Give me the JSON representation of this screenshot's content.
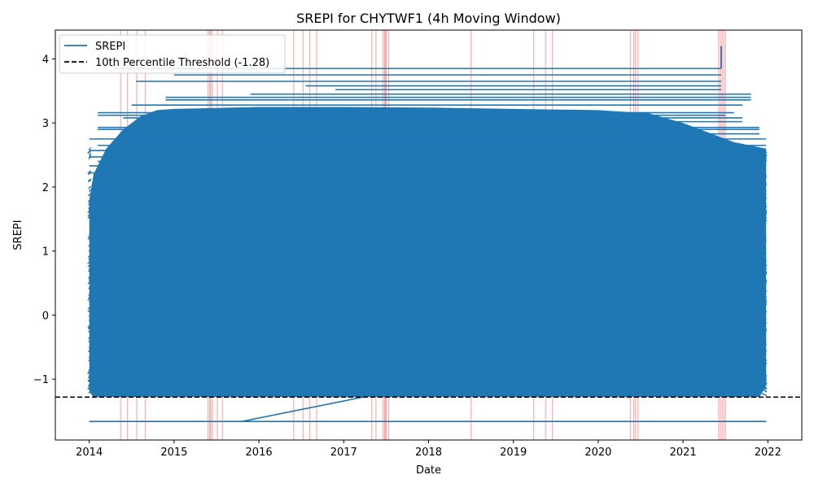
{
  "chart_data": {
    "type": "line",
    "title": "SREPI for CHYTWF1 (4h Moving Window)",
    "xlabel": "Date",
    "ylabel": "SREPI",
    "xlim": [
      2013.6,
      2022.4
    ],
    "ylim": [
      -1.95,
      4.45
    ],
    "x_ticks": [
      2014,
      2015,
      2016,
      2017,
      2018,
      2019,
      2020,
      2021,
      2022
    ],
    "x_tick_labels": [
      "2014",
      "2015",
      "2016",
      "2017",
      "2018",
      "2019",
      "2020",
      "2021",
      "2022"
    ],
    "y_ticks": [
      -1,
      0,
      1,
      2,
      3,
      4
    ],
    "y_tick_labels": [
      "−1",
      "0",
      "1",
      "2",
      "3",
      "4"
    ],
    "grid": false,
    "legend_position": "top-left",
    "series": [
      {
        "name": "SREPI",
        "color": "#1f77b4",
        "band": {
          "x_start": 2014.0,
          "x_end": 2021.98,
          "y_min": -1.28,
          "y_upper_envelope": [
            [
              2014.0,
              1.8
            ],
            [
              2014.05,
              2.2
            ],
            [
              2014.2,
              2.6
            ],
            [
              2014.4,
              2.9
            ],
            [
              2014.6,
              3.1
            ],
            [
              2014.8,
              3.2
            ],
            [
              2015.0,
              3.22
            ],
            [
              2016.0,
              3.25
            ],
            [
              2017.0,
              3.25
            ],
            [
              2018.0,
              3.24
            ],
            [
              2019.0,
              3.22
            ],
            [
              2020.0,
              3.2
            ],
            [
              2020.6,
              3.15
            ],
            [
              2021.0,
              3.0
            ],
            [
              2021.3,
              2.85
            ],
            [
              2021.6,
              2.7
            ],
            [
              2021.98,
              2.6
            ]
          ],
          "y_lower_envelope": [
            [
              2014.0,
              -1.2
            ],
            [
              2014.05,
              -1.28
            ],
            [
              2021.9,
              -1.28
            ],
            [
              2021.98,
              -1.1
            ]
          ]
        },
        "horizontal_segments": [
          {
            "x0": 2014.0,
            "x1": 2021.98,
            "y": -1.66
          },
          {
            "x0": 2014.3,
            "x1": 2021.45,
            "y": 3.85
          },
          {
            "x0": 2014.55,
            "x1": 2021.45,
            "y": 3.65
          },
          {
            "x0": 2015.0,
            "x1": 2021.45,
            "y": 3.75
          },
          {
            "x0": 2016.55,
            "x1": 2021.45,
            "y": 3.58
          },
          {
            "x0": 2016.9,
            "x1": 2021.45,
            "y": 3.52
          },
          {
            "x0": 2015.9,
            "x1": 2021.8,
            "y": 3.45
          },
          {
            "x0": 2014.9,
            "x1": 2021.8,
            "y": 3.4
          },
          {
            "x0": 2014.9,
            "x1": 2021.8,
            "y": 3.36
          },
          {
            "x0": 2014.5,
            "x1": 2021.7,
            "y": 3.28
          },
          {
            "x0": 2014.1,
            "x1": 2021.6,
            "y": 3.16
          },
          {
            "x0": 2014.1,
            "x1": 2021.5,
            "y": 3.12
          },
          {
            "x0": 2014.4,
            "x1": 2021.7,
            "y": 3.08
          },
          {
            "x0": 2020.2,
            "x1": 2021.7,
            "y": 3.02
          },
          {
            "x0": 2014.1,
            "x1": 2021.9,
            "y": 2.93
          },
          {
            "x0": 2014.1,
            "x1": 2021.9,
            "y": 2.9
          },
          {
            "x0": 2020.2,
            "x1": 2021.9,
            "y": 2.83
          },
          {
            "x0": 2014.0,
            "x1": 2021.98,
            "y": 2.75
          },
          {
            "x0": 2014.1,
            "x1": 2021.98,
            "y": 2.65
          },
          {
            "x0": 2014.0,
            "x1": 2021.98,
            "y": 2.57
          },
          {
            "x0": 2014.0,
            "x1": 2021.98,
            "y": 2.47
          },
          {
            "x0": 2014.1,
            "x1": 2021.98,
            "y": 2.4
          },
          {
            "x0": 2014.0,
            "x1": 2021.98,
            "y": 2.33
          },
          {
            "x0": 2014.0,
            "x1": 2021.98,
            "y": 2.22
          },
          {
            "x0": 2021.0,
            "x1": 2021.98,
            "y": 2.08
          },
          {
            "x0": 2021.0,
            "x1": 2021.98,
            "y": 2.01
          }
        ],
        "connectors": [
          {
            "x0": 2015.8,
            "y0": -1.66,
            "x1": 2017.3,
            "y1": -1.26
          }
        ],
        "spike": {
          "x": 2021.45,
          "y0": 3.85,
          "y1": 4.2
        }
      }
    ],
    "reference_lines": [
      {
        "name": "10th Percentile Threshold (-1.28)",
        "y": -1.28,
        "color": "#000000",
        "style": "dashed"
      }
    ],
    "event_markers": {
      "color": "#ff0000",
      "x": [
        2014.37,
        2014.45,
        2014.56,
        2014.66,
        2015.4,
        2015.42,
        2015.43,
        2015.45,
        2015.51,
        2015.57,
        2016.41,
        2016.52,
        2016.6,
        2016.68,
        2017.33,
        2017.38,
        2017.46,
        2017.48,
        2017.49,
        2017.5,
        2017.53,
        2018.5,
        2019.24,
        2019.38,
        2019.46,
        2020.38,
        2020.42,
        2020.44,
        2020.47,
        2021.42,
        2021.44,
        2021.46,
        2021.48,
        2021.5
      ]
    }
  }
}
